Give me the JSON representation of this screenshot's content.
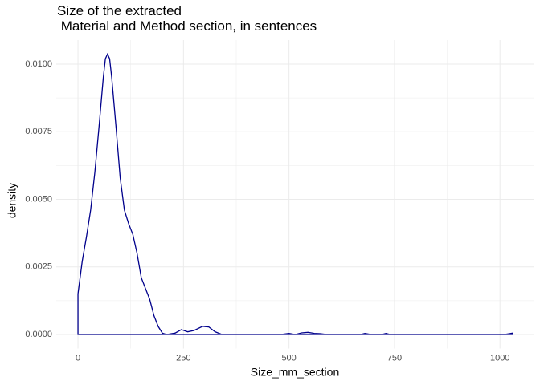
{
  "chart_data": {
    "type": "density",
    "title": "Size of the extracted\n Material and Method section, in sentences",
    "x_label": "Size_mm_section",
    "y_label": "density",
    "x": [
      0,
      0,
      10,
      20,
      30,
      40,
      50,
      60,
      65,
      70,
      75,
      80,
      90,
      100,
      110,
      120,
      130,
      140,
      150,
      160,
      170,
      180,
      190,
      200,
      210,
      230,
      245,
      260,
      275,
      295,
      310,
      325,
      340,
      360,
      480,
      500,
      515,
      530,
      545,
      560,
      575,
      590,
      670,
      680,
      695,
      720,
      730,
      740,
      1010,
      1030,
      1030
    ],
    "values": [
      0,
      0.0015,
      0.0027,
      0.0036,
      0.0046,
      0.006,
      0.0077,
      0.0095,
      0.0102,
      0.01037,
      0.0102,
      0.0095,
      0.0077,
      0.0058,
      0.0046,
      0.0041,
      0.0037,
      0.003,
      0.0021,
      0.0017,
      0.0013,
      0.0007,
      0.0003,
      5e-05,
      0,
      5e-05,
      0.00018,
      0.0001,
      0.00015,
      0.0003,
      0.00028,
      0.0001,
      1e-05,
      0,
      0,
      4e-05,
      0,
      6e-05,
      8e-05,
      4e-05,
      3e-05,
      0,
      0,
      4e-05,
      0,
      0,
      4e-05,
      0,
      0,
      5e-05,
      0
    ],
    "color": "#00008b",
    "xlim": [
      -51.5,
      1081.5
    ],
    "ylim": [
      -0.000519,
      0.010889
    ],
    "xticks": [
      0,
      250,
      500,
      750,
      1000
    ],
    "yticks": [
      {
        "value": 0,
        "label": "0.0000"
      },
      {
        "value": 0.0025,
        "label": "0.0025"
      },
      {
        "value": 0.005,
        "label": "0.0050"
      },
      {
        "value": 0.0075,
        "label": "0.0075"
      },
      {
        "value": 0.01,
        "label": "0.0100"
      }
    ],
    "grid": true
  }
}
